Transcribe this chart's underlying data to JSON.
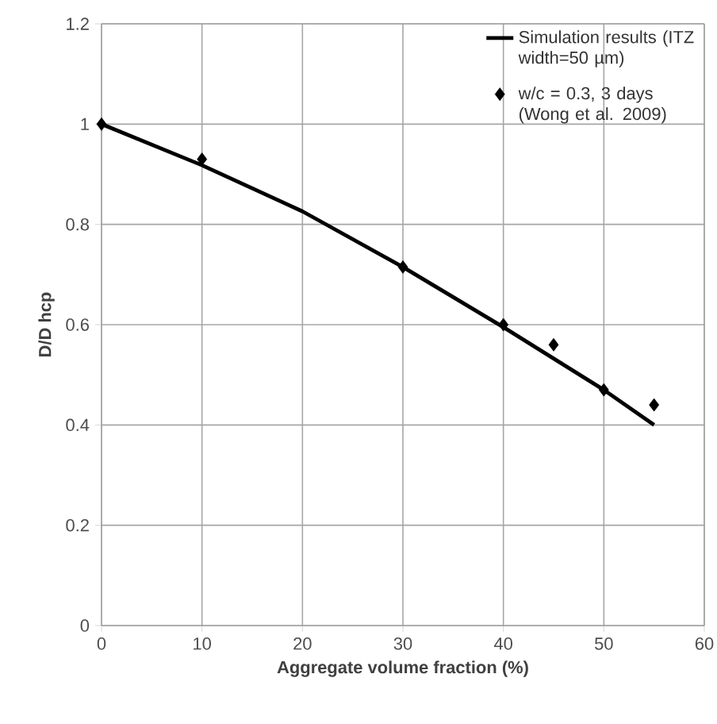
{
  "chart_data": {
    "type": "line",
    "xlabel": "Aggregate volume fraction (%)",
    "ylabel": "D/D hcp",
    "xlim": [
      0,
      60
    ],
    "ylim": [
      0,
      1.2
    ],
    "xticks": [
      0,
      10,
      20,
      30,
      40,
      50,
      60
    ],
    "yticks": [
      0,
      0.2,
      0.4,
      0.6,
      0.8,
      1,
      1.2
    ],
    "grid": true,
    "legend": "top right",
    "series": [
      {
        "name": "Simulation results (ITZ width=50 µm)",
        "color": "#000000",
        "marker": "none",
        "line_style": "solid",
        "x": [
          0,
          10,
          20,
          30,
          40,
          50,
          55
        ],
        "values": [
          1,
          0.918,
          0.826,
          0.715,
          0.595,
          0.47,
          0.4
        ]
      },
      {
        "name": "w/c = 0.3, 3 days (Wong et al. 2009)",
        "type": "scatter",
        "color": "#000000",
        "marker": "diamond",
        "x": [
          0,
          10,
          30,
          40,
          45,
          50,
          55
        ],
        "values": [
          1,
          0.93,
          0.715,
          0.6,
          0.56,
          0.47,
          0.44
        ]
      }
    ]
  }
}
